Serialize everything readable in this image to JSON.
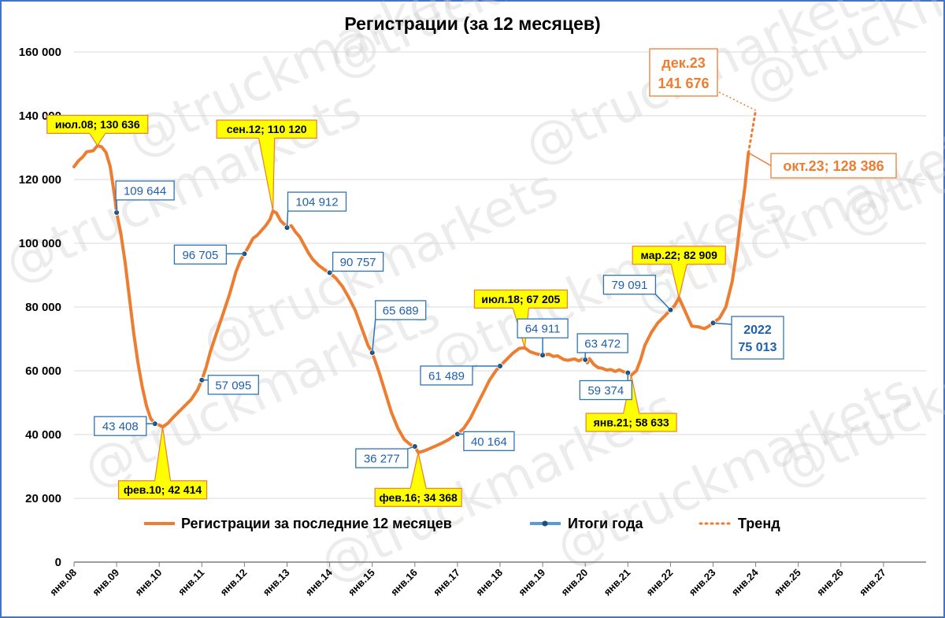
{
  "watermark": "@truckmarkets",
  "chart_data": {
    "type": "line",
    "title": "Регистрации (за 12 месяцев)",
    "xlabel": "",
    "ylabel": "",
    "ylim": [
      0,
      160000
    ],
    "y_ticks": [
      0,
      20000,
      40000,
      60000,
      80000,
      100000,
      120000,
      140000,
      160000
    ],
    "y_tick_labels": [
      "0",
      "20 000",
      "40 000",
      "60 000",
      "80 000",
      "100 000",
      "120 000",
      "140 000",
      "160 000"
    ],
    "x_range": [
      2008,
      2028
    ],
    "x_tick_labels": [
      "янв.08",
      "янв.09",
      "янв.10",
      "янв.11",
      "янв.12",
      "янв.13",
      "янв.14",
      "янв.15",
      "янв.16",
      "янв.17",
      "янв.18",
      "янв.19",
      "янв.20",
      "янв.21",
      "янв.22",
      "янв.23",
      "янв.24",
      "янв.25",
      "янв.26",
      "янв.27"
    ],
    "grid": "horizontal",
    "legend_position": "bottom",
    "colors": {
      "main": "#ed7d31",
      "yearly": "#5b9bd5",
      "marker": "#1f4e79",
      "box_fill": "#ffff00",
      "box_border": "#ed7d31",
      "blue_text": "#1f5fae",
      "frame": "#4472c4"
    },
    "series": [
      {
        "name": "Регистрации за последние 12 месяцев",
        "style": "solid",
        "points": [
          [
            2008.0,
            124000
          ],
          [
            2008.1,
            125800
          ],
          [
            2008.2,
            127000
          ],
          [
            2008.3,
            128700
          ],
          [
            2008.45,
            129000
          ],
          [
            2008.55,
            130636
          ],
          [
            2008.65,
            130200
          ],
          [
            2008.75,
            128500
          ],
          [
            2008.85,
            124000
          ],
          [
            2008.95,
            115000
          ],
          [
            2009.0,
            109644
          ],
          [
            2009.1,
            103000
          ],
          [
            2009.2,
            94000
          ],
          [
            2009.3,
            83000
          ],
          [
            2009.4,
            72000
          ],
          [
            2009.5,
            62500
          ],
          [
            2009.6,
            55000
          ],
          [
            2009.7,
            49000
          ],
          [
            2009.8,
            45000
          ],
          [
            2009.9,
            43408
          ],
          [
            2010.0,
            43000
          ],
          [
            2010.08,
            42414
          ],
          [
            2010.2,
            43500
          ],
          [
            2010.3,
            45000
          ],
          [
            2010.45,
            47000
          ],
          [
            2010.6,
            49000
          ],
          [
            2010.75,
            51000
          ],
          [
            2010.9,
            54000
          ],
          [
            2011.0,
            57095
          ],
          [
            2011.1,
            61000
          ],
          [
            2011.2,
            66000
          ],
          [
            2011.35,
            72000
          ],
          [
            2011.5,
            78000
          ],
          [
            2011.65,
            84000
          ],
          [
            2011.8,
            91000
          ],
          [
            2011.9,
            94500
          ],
          [
            2012.0,
            96705
          ],
          [
            2012.1,
            99000
          ],
          [
            2012.2,
            101500
          ],
          [
            2012.3,
            102500
          ],
          [
            2012.4,
            104000
          ],
          [
            2012.5,
            105500
          ],
          [
            2012.6,
            107500
          ],
          [
            2012.67,
            110120
          ],
          [
            2012.75,
            109500
          ],
          [
            2012.85,
            107000
          ],
          [
            2012.95,
            105800
          ],
          [
            2013.0,
            104912
          ],
          [
            2013.1,
            105500
          ],
          [
            2013.2,
            103500
          ],
          [
            2013.3,
            102000
          ],
          [
            2013.4,
            99500
          ],
          [
            2013.5,
            97000
          ],
          [
            2013.6,
            95000
          ],
          [
            2013.75,
            93000
          ],
          [
            2013.9,
            91500
          ],
          [
            2014.0,
            90757
          ],
          [
            2014.15,
            89000
          ],
          [
            2014.3,
            86500
          ],
          [
            2014.45,
            83000
          ],
          [
            2014.6,
            79000
          ],
          [
            2014.75,
            73500
          ],
          [
            2014.9,
            68000
          ],
          [
            2015.0,
            65689
          ],
          [
            2015.15,
            60000
          ],
          [
            2015.3,
            53500
          ],
          [
            2015.45,
            47000
          ],
          [
            2015.6,
            42000
          ],
          [
            2015.75,
            38500
          ],
          [
            2015.9,
            36800
          ],
          [
            2016.0,
            36277
          ],
          [
            2016.08,
            34368
          ],
          [
            2016.2,
            34800
          ],
          [
            2016.35,
            35600
          ],
          [
            2016.5,
            36500
          ],
          [
            2016.65,
            37400
          ],
          [
            2016.8,
            38500
          ],
          [
            2016.9,
            39400
          ],
          [
            2017.0,
            40164
          ],
          [
            2017.15,
            42000
          ],
          [
            2017.3,
            45000
          ],
          [
            2017.45,
            49000
          ],
          [
            2017.6,
            53000
          ],
          [
            2017.75,
            57000
          ],
          [
            2017.9,
            60000
          ],
          [
            2018.0,
            61489
          ],
          [
            2018.15,
            63500
          ],
          [
            2018.3,
            65500
          ],
          [
            2018.45,
            67000
          ],
          [
            2018.58,
            67205
          ],
          [
            2018.7,
            66000
          ],
          [
            2018.85,
            65300
          ],
          [
            2019.0,
            64911
          ],
          [
            2019.15,
            65200
          ],
          [
            2019.25,
            64500
          ],
          [
            2019.35,
            64700
          ],
          [
            2019.5,
            63500
          ],
          [
            2019.6,
            63300
          ],
          [
            2019.75,
            63700
          ],
          [
            2019.85,
            63100
          ],
          [
            2019.95,
            63800
          ],
          [
            2020.0,
            63472
          ],
          [
            2020.05,
            62500
          ],
          [
            2020.1,
            63800
          ],
          [
            2020.2,
            62000
          ],
          [
            2020.3,
            61000
          ],
          [
            2020.4,
            60800
          ],
          [
            2020.5,
            60200
          ],
          [
            2020.6,
            60400
          ],
          [
            2020.7,
            59800
          ],
          [
            2020.8,
            60300
          ],
          [
            2020.9,
            59700
          ],
          [
            2021.0,
            59374
          ],
          [
            2021.08,
            58633
          ],
          [
            2021.2,
            60000
          ],
          [
            2021.3,
            63500
          ],
          [
            2021.4,
            68000
          ],
          [
            2021.55,
            72000
          ],
          [
            2021.7,
            75000
          ],
          [
            2021.85,
            77000
          ],
          [
            2022.0,
            79091
          ],
          [
            2022.1,
            80500
          ],
          [
            2022.2,
            82909
          ],
          [
            2022.3,
            80000
          ],
          [
            2022.4,
            77000
          ],
          [
            2022.5,
            74000
          ],
          [
            2022.65,
            73800
          ],
          [
            2022.8,
            73200
          ],
          [
            2022.9,
            74000
          ],
          [
            2023.0,
            75013
          ],
          [
            2023.15,
            76500
          ],
          [
            2023.3,
            80000
          ],
          [
            2023.45,
            88000
          ],
          [
            2023.55,
            97000
          ],
          [
            2023.65,
            108000
          ],
          [
            2023.75,
            118000
          ],
          [
            2023.83,
            128386
          ]
        ]
      },
      {
        "name": "Итоги года",
        "style": "markers",
        "points": [
          [
            2009.0,
            109644
          ],
          [
            2009.9,
            43408
          ],
          [
            2011.0,
            57095
          ],
          [
            2012.0,
            96705
          ],
          [
            2013.0,
            104912
          ],
          [
            2014.0,
            90757
          ],
          [
            2015.0,
            65689
          ],
          [
            2016.0,
            36277
          ],
          [
            2017.0,
            40164
          ],
          [
            2018.0,
            61489
          ],
          [
            2019.0,
            64911
          ],
          [
            2020.0,
            63472
          ],
          [
            2021.0,
            59374
          ],
          [
            2022.0,
            79091
          ],
          [
            2023.0,
            75013
          ]
        ]
      },
      {
        "name": "Тренд",
        "style": "dotted",
        "points": [
          [
            2023.83,
            128386
          ],
          [
            2024.0,
            141676
          ]
        ]
      }
    ],
    "annotations": {
      "yellow": [
        {
          "text": "июл.08; 130 636",
          "x": 2008.55,
          "y": 130636
        },
        {
          "text": "фев.10; 42 414",
          "x": 2010.08,
          "y": 42414
        },
        {
          "text": "сен.12; 110 120",
          "x": 2012.67,
          "y": 110120
        },
        {
          "text": "фев.16; 34 368",
          "x": 2016.08,
          "y": 34368
        },
        {
          "text": "июл.18; 67 205",
          "x": 2018.58,
          "y": 67205
        },
        {
          "text": "янв.21; 58 633",
          "x": 2021.08,
          "y": 58633
        },
        {
          "text": "мар.22; 82 909",
          "x": 2022.2,
          "y": 82909
        }
      ],
      "blue": [
        {
          "text": "109 644",
          "x": 2009.0,
          "y": 109644
        },
        {
          "text": "43 408",
          "x": 2009.9,
          "y": 43408
        },
        {
          "text": "57 095",
          "x": 2011.0,
          "y": 57095
        },
        {
          "text": "96 705",
          "x": 2012.0,
          "y": 96705
        },
        {
          "text": "104 912",
          "x": 2013.0,
          "y": 104912
        },
        {
          "text": "90 757",
          "x": 2014.0,
          "y": 90757
        },
        {
          "text": "65 689",
          "x": 2015.0,
          "y": 65689
        },
        {
          "text": "36 277",
          "x": 2016.0,
          "y": 36277
        },
        {
          "text": "40 164",
          "x": 2017.0,
          "y": 40164
        },
        {
          "text": "61 489",
          "x": 2018.0,
          "y": 61489
        },
        {
          "text": "64 911",
          "x": 2019.0,
          "y": 64911
        },
        {
          "text": "63 472",
          "x": 2020.0,
          "y": 63472
        },
        {
          "text": "59 374",
          "x": 2021.0,
          "y": 59374
        },
        {
          "text": "79 091",
          "x": 2022.0,
          "y": 79091
        }
      ],
      "blue_two_line": {
        "lines": [
          "2022",
          "75 013"
        ],
        "x": 2023.0,
        "y": 75013
      },
      "orange": [
        {
          "lines": [
            "дек.23",
            "141 676"
          ],
          "x": 2024.0,
          "y": 141676
        },
        {
          "lines": [
            "окт.23; 128 386"
          ],
          "x": 2023.83,
          "y": 128386
        }
      ]
    }
  }
}
